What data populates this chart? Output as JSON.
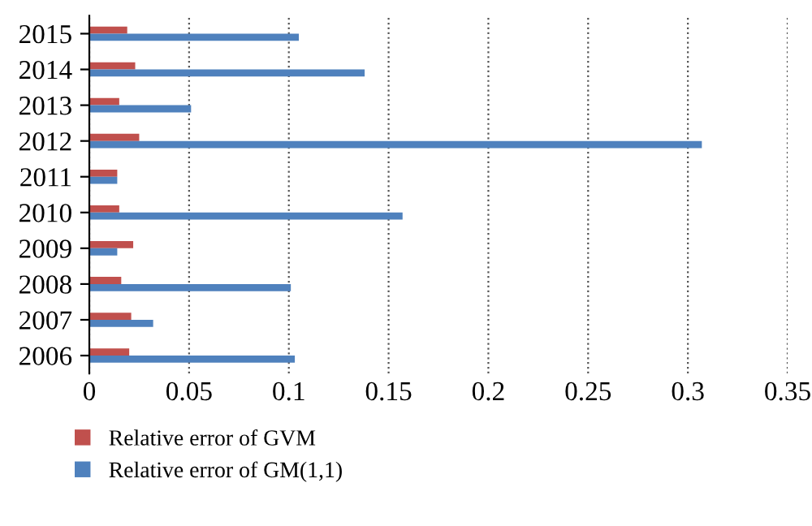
{
  "chart_data": {
    "type": "bar",
    "orientation": "horizontal",
    "categories": [
      "2015",
      "2014",
      "2013",
      "2012",
      "2011",
      "2010",
      "2009",
      "2008",
      "2007",
      "2006"
    ],
    "series": [
      {
        "name": "Relative error of GVM",
        "color": "#c0504d",
        "values": [
          0.019,
          0.023,
          0.015,
          0.025,
          0.014,
          0.015,
          0.022,
          0.016,
          0.021,
          0.02
        ]
      },
      {
        "name": "Relative error of GM(1,1)",
        "color": "#4f81bd",
        "values": [
          0.105,
          0.138,
          0.051,
          0.307,
          0.014,
          0.157,
          0.014,
          0.101,
          0.032,
          0.103
        ]
      }
    ],
    "xlim": [
      0,
      0.35
    ],
    "xticks": [
      0,
      0.05,
      0.1,
      0.15,
      0.2,
      0.25,
      0.3,
      0.35
    ],
    "grid": "x",
    "line_style": "dotted",
    "legend": "bottom"
  }
}
